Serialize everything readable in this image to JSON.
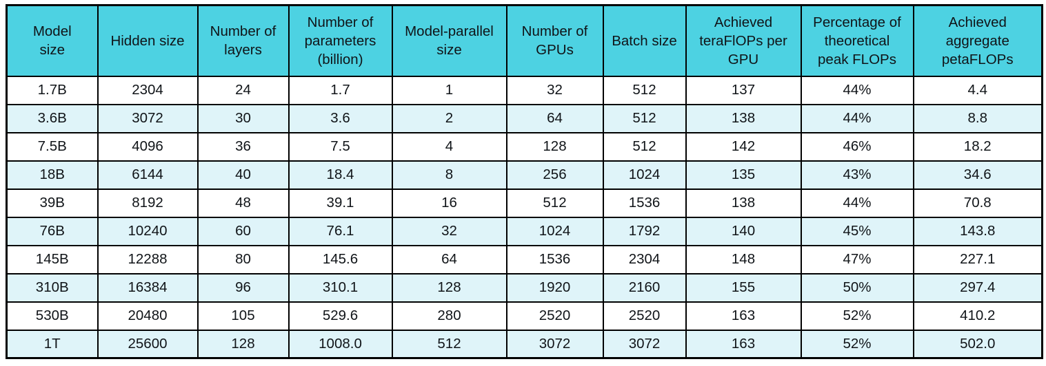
{
  "colors": {
    "header_bg": "#4DD2E2",
    "row_bg": "#FFFFFF",
    "row_alt_bg": "#DFF4F9",
    "border": "#000000",
    "text": "#101418"
  },
  "chart_data": {
    "type": "table",
    "columns": [
      "Model size",
      "Hidden size",
      "Number of layers",
      "Number of parameters (billion)",
      "Model-parallel size",
      "Number of GPUs",
      "Batch size",
      "Achieved teraFlOPs per GPU",
      "Percentage of theoretical peak FLOPs",
      "Achieved aggregate petaFLOPs"
    ],
    "column_display": [
      "Model\nsize",
      "Hidden size",
      "Number of\nlayers",
      "Number of\nparameters\n(billion)",
      "Model-parallel\nsize",
      "Number of\nGPUs",
      "Batch size",
      "Achieved\nteraFlOPs per\nGPU",
      "Percentage of\ntheoretical\npeak FLOPs",
      "Achieved\naggregate\npetaFLOPs"
    ],
    "column_ids": [
      "model-size",
      "hidden-size",
      "number-of-layers",
      "number-of-parameters-billion",
      "model-parallel-size",
      "number-of-gpus",
      "batch-size",
      "achieved-teraflops-per-gpu",
      "percentage-theoretical-peak-flops",
      "achieved-aggregate-petaflops"
    ],
    "rows": [
      [
        "1.7B",
        "2304",
        "24",
        "1.7",
        "1",
        "32",
        "512",
        "137",
        "44%",
        "4.4"
      ],
      [
        "3.6B",
        "3072",
        "30",
        "3.6",
        "2",
        "64",
        "512",
        "138",
        "44%",
        "8.8"
      ],
      [
        "7.5B",
        "4096",
        "36",
        "7.5",
        "4",
        "128",
        "512",
        "142",
        "46%",
        "18.2"
      ],
      [
        "18B",
        "6144",
        "40",
        "18.4",
        "8",
        "256",
        "1024",
        "135",
        "43%",
        "34.6"
      ],
      [
        "39B",
        "8192",
        "48",
        "39.1",
        "16",
        "512",
        "1536",
        "138",
        "44%",
        "70.8"
      ],
      [
        "76B",
        "10240",
        "60",
        "76.1",
        "32",
        "1024",
        "1792",
        "140",
        "45%",
        "143.8"
      ],
      [
        "145B",
        "12288",
        "80",
        "145.6",
        "64",
        "1536",
        "2304",
        "148",
        "47%",
        "227.1"
      ],
      [
        "310B",
        "16384",
        "96",
        "310.1",
        "128",
        "1920",
        "2160",
        "155",
        "50%",
        "297.4"
      ],
      [
        "530B",
        "20480",
        "105",
        "529.6",
        "280",
        "2520",
        "2520",
        "163",
        "52%",
        "410.2"
      ],
      [
        "1T",
        "25600",
        "128",
        "1008.0",
        "512",
        "3072",
        "3072",
        "163",
        "52%",
        "502.0"
      ]
    ]
  }
}
